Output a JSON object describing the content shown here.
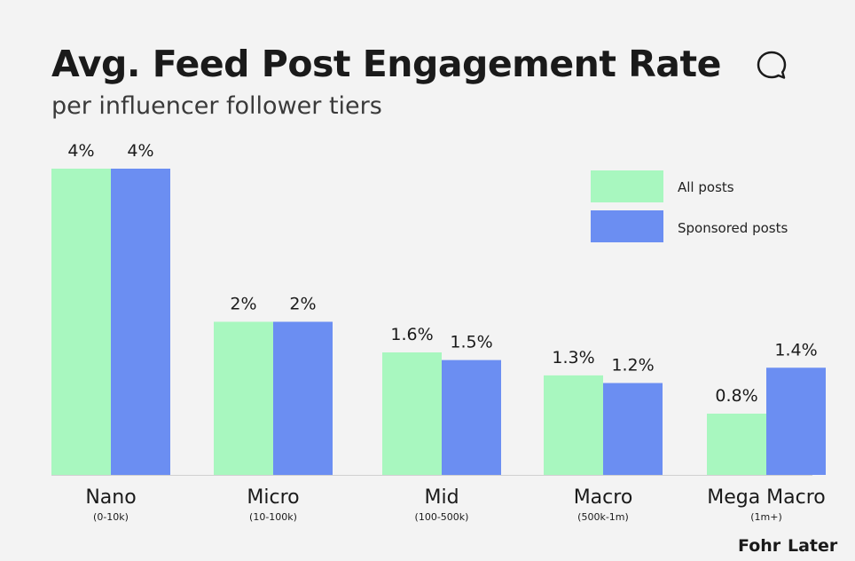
{
  "header": {
    "title": "Avg. Feed Post Engagement Rate",
    "subtitle": "per influencer follower tiers"
  },
  "title_icon": "chat-bubble-icon",
  "legend": {
    "all_posts": "All posts",
    "sponsored_posts": "Sponsored posts"
  },
  "colors": {
    "all_posts": "#a8f7bf",
    "sponsored_posts": "#6b8ef2",
    "background": "#f3f3f3"
  },
  "brands": {
    "left": "Fohr",
    "right": "Later"
  },
  "chart_data": {
    "type": "bar",
    "categories": [
      "Nano",
      "Micro",
      "Mid",
      "Macro",
      "Mega Macro"
    ],
    "category_sublabels": [
      "(0-10k)",
      "(10-100k)",
      "(100-500k)",
      "(500k-1m)",
      "(1m+)"
    ],
    "series": [
      {
        "name": "All posts",
        "values": [
          4,
          2,
          1.6,
          1.3,
          0.8
        ],
        "labels": [
          "4%",
          "2%",
          "1.6%",
          "1.3%",
          "0.8%"
        ]
      },
      {
        "name": "Sponsored posts",
        "values": [
          4,
          2,
          1.5,
          1.2,
          1.4
        ],
        "labels": [
          "4%",
          "2%",
          "1.5%",
          "1.2%",
          "1.4%"
        ]
      }
    ],
    "title": "Avg. Feed Post Engagement Rate",
    "subtitle": "per influencer follower tiers",
    "unit": "%",
    "ylim": [
      0,
      4
    ],
    "grid": false,
    "legend_position": "top-right"
  }
}
